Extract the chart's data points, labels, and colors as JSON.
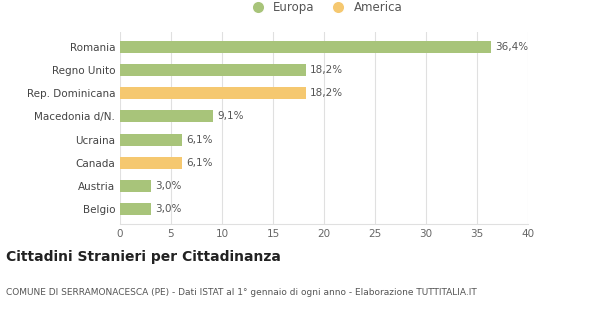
{
  "categories": [
    "Belgio",
    "Austria",
    "Canada",
    "Ucraina",
    "Macedonia d/N.",
    "Rep. Dominicana",
    "Regno Unito",
    "Romania"
  ],
  "values": [
    3.0,
    3.0,
    6.1,
    6.1,
    9.1,
    18.2,
    18.2,
    36.4
  ],
  "labels": [
    "3,0%",
    "3,0%",
    "6,1%",
    "6,1%",
    "9,1%",
    "18,2%",
    "18,2%",
    "36,4%"
  ],
  "colors": [
    "#a8c47a",
    "#a8c47a",
    "#f5c870",
    "#a8c47a",
    "#a8c47a",
    "#f5c870",
    "#a8c47a",
    "#a8c47a"
  ],
  "europa_color": "#a8c47a",
  "america_color": "#f5c870",
  "title": "Cittadini Stranieri per Cittadinanza",
  "subtitle": "COMUNE DI SERRAMONACESCA (PE) - Dati ISTAT al 1° gennaio di ogni anno - Elaborazione TUTTITALIA.IT",
  "xlim": [
    0,
    40
  ],
  "xticks": [
    0,
    5,
    10,
    15,
    20,
    25,
    30,
    35,
    40
  ],
  "legend_europa": "Europa",
  "legend_america": "America",
  "bg_color": "#ffffff",
  "grid_color": "#e0e0e0",
  "bar_height": 0.52,
  "label_fontsize": 7.5,
  "tick_fontsize": 7.5,
  "title_fontsize": 10,
  "subtitle_fontsize": 6.5
}
